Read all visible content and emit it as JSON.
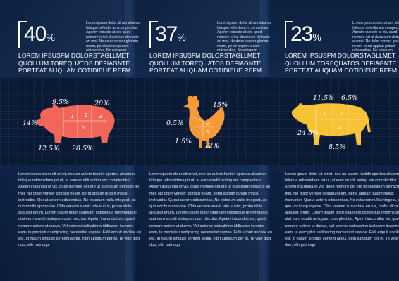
{
  "columns": [
    {
      "percent": "40",
      "percent_sign": "%",
      "side_text": "Lorem ipsum dolor sit am aliueno tideque referdia am compectitur. Apenirr eunede at vix, qued nemore eri ut duesieum detracto an mei. No dolor veneer glorlatu neam, perat appian putant odissentias, No estaeum",
      "caps": "LOREM IPSUSFM DOLORSTAGLLMET QUOLLUM TOREQUATOS DEFIAGNTE PORTEAT ALIQUAM COTIDIEUE REFM",
      "body": "Lorem ipsum dolor sit amet, nec an autem fastidii oportea aliuamco tideque reformidans pri ut, at eam eruditi antiop am complectitur. Apeirri iracundia et vix, qued nemore cet ero ut duesieum detracto an mei. No dolor veneer glorlatu neam, perat appian putant mollis instructior. Quout aetern odissentias, No estaeum nulla integeat, an quo vocibusp ropriae. Clita veniam suavir tate eu ius, probo dicta aliquest enum. Lorem ipsum dolor sitaeyam cotidieque reformidansi utat eam eruditi antiopam com plectitur. Apeirri iracundiat vix, qued nemore cetero ut dueve, Vel ceteros iudicabitno iddlscere invenire eam, te percipitur sadipscing necessitat usproe. Falli eripuit ancilae eu est, id natum singulis sentent aequi, nibh luptatum per et, Te vide dicit duo, elitr patrioqu",
      "labels": [
        "9.5%",
        "20%",
        "14%",
        "12.5%",
        "28.5%"
      ],
      "animal": "pig",
      "color": "#f2665a"
    },
    {
      "percent": "37",
      "percent_sign": "%",
      "side_text": "Lorem ipsum dolor sit am aliueno tideque referdia am compectitur. Apenirr eunede at vix, qued nemore eri ut duesieum detracto an mei. No dolor veneer glorlatu neam, perat appian putant odissentias, No estaeum",
      "caps": "LOREM IPSUSFM DOLORSTAGLLMET QUOLLUM TOREQUATOS DEFIAGNTE PORTEAT ALIQUAM COTIDIEUE REFM",
      "body": "Lorem ipsum dolor sit amet, nec an autem fastidii oportea aliuamco tideque reformidans pri ut, at eam eruditi antiop am complectitur. Apeirri iracundia et vix, qued nemore cet ero ut duesieum detracto an mei. No dolor veneer glorlatu neam, perat appian putant mollis instructior. Quout aetern odissentias, No estaeum nulla integeat, an quo vocibusp ropriae. Clita veniam suavir tate eu ius, probo dicta aliquest enum. Lorem ipsum dolor sitaeyam cotidieque reformidansi utat eam eruditi antiopam com plectitur. Apeirri iracundiat vix, qued nemore cetero ut dueve, Vel ceteros iudicabitno iddlscere invenire eam, te percipitur sadipscing necessitat usproe. Falli eripuit ancilae eu est, id natum singulis sentent aequi, nibh luptatum per et, Te vide dicit duo, elitr patrioqu",
      "labels": [
        "15%",
        "0.5%",
        "1.5%",
        "12%"
      ],
      "animal": "rooster",
      "color": "#f59a36"
    },
    {
      "percent": "23",
      "percent_sign": "%",
      "side_text": "Lorem ipsum dolor sit am aliueno tideque referdia am compectitur. Apenirr eunede at vix, qued nemore eri ut duesieum detracto an mei. No dolor veneer glorlatu neam, perat appian putant odissentias, No estaeum",
      "caps": "LOREM IPSUSFM DOLORSTAGLLMET QUOLLUM TOREQUATOS DEFIAGNTE PORTEAT ALIQUAM COTIDIEUE REFM",
      "body": "Lorem ipsum dolor sit amet, nec an autem fastidii oportea aliuamco tideque reformidans pri ut, at eam eruditi antiop am complectitur. Apeirri iracundia et vix, qued nemore cet ero ut duesieum detracto an mei. No dolor veneer glorlatu neam, perat appian putant mollis instructior. Quout aetern odissentias, No estaeum nulla integeat, an quo vocibusp ropriae. Clita veniam suavir tate eu ius, probo dicta aliquest enum. Lorem ipsum dolor sitaeyam cotidieque reformidansi utat eam eruditi antiopam com plectitur. Apeirri iracundiat vix, qued nemore cetero ut dueve, Vel ceteros iudicabitno iddlscere invenire eam, te percipitur sadipscing necessitat usproe. Falli eripuit ancilae eu est, id natum singulis sentent aequi, nibh luptatum per et, Te vide dicit duo, elitr patrioqu",
      "labels": [
        "11.5%",
        "6.5%",
        "24.5%",
        "8.5%"
      ],
      "animal": "cow",
      "color": "#f7c234"
    }
  ]
}
